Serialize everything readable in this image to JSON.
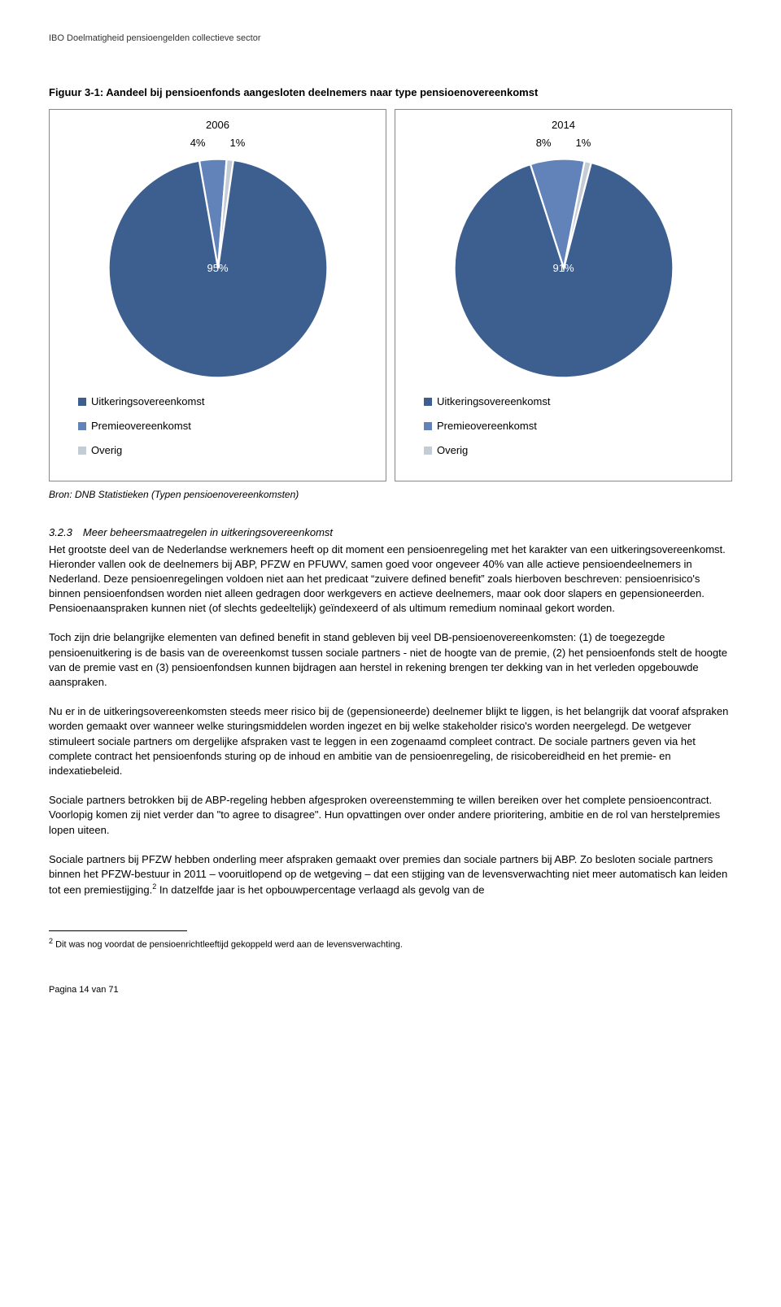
{
  "header": "IBO Doelmatigheid pensioengelden collectieve sector",
  "figure_title": "Figuur 3-1: Aandeel bij pensioenfonds aangesloten deelnemers naar type pensioenovereenkomst",
  "charts": {
    "left": {
      "year": "2006",
      "label_b": "4%",
      "label_c": "1%",
      "center_label": "95%",
      "slices": [
        {
          "value": 95,
          "color": "#3d5f8f"
        },
        {
          "value": 4,
          "color": "#6283b9"
        },
        {
          "value": 1,
          "color": "#c4cdd6"
        }
      ]
    },
    "right": {
      "year": "2014",
      "label_b": "8%",
      "label_c": "1%",
      "center_label": "91%",
      "slices": [
        {
          "value": 91,
          "color": "#3d5f8f"
        },
        {
          "value": 8,
          "color": "#6283b9"
        },
        {
          "value": 1,
          "color": "#c4cdd6"
        }
      ]
    },
    "legend": [
      {
        "label": "Uitkeringsovereenkomst",
        "color": "#3d5f8f"
      },
      {
        "label": "Premieovereenkomst",
        "color": "#6283b9"
      },
      {
        "label": "Overig",
        "color": "#c4cdd6"
      }
    ]
  },
  "source": "Bron: DNB Statistieken (Typen pensioenovereenkomsten)",
  "section_heading": "3.2.3 Meer beheersmaatregelen in uitkeringsovereenkomst",
  "para1": "Het grootste deel van de Nederlandse werknemers heeft op dit moment een pensioenregeling met het karakter van een uitkeringsovereenkomst. Hieronder vallen ook de deelnemers bij ABP, PFZW en PFUWV, samen goed voor ongeveer 40% van alle actieve pensioendeelnemers in Nederland. Deze pensioenregelingen voldoen niet aan het predicaat “zuivere defined benefit” zoals hierboven beschreven: pensioenrisico's binnen pensioenfondsen worden niet alleen gedragen door werkgevers en actieve deelnemers, maar ook door slapers en gepensioneerden. Pensioenaanspraken kunnen niet (of slechts gedeeltelijk) geïndexeerd of als ultimum remedium nominaal gekort worden.",
  "para2": "Toch zijn drie belangrijke elementen van defined benefit in stand gebleven bij veel DB-pensioenovereenkomsten: (1) de toegezegde pensioenuitkering is de basis van de overeenkomst tussen sociale partners - niet de hoogte van de premie, (2) het pensioenfonds stelt de hoogte van de premie vast en (3) pensioenfondsen kunnen bijdragen aan herstel in rekening brengen ter dekking van in het verleden opgebouwde aanspraken.",
  "para3": "Nu er in de uitkeringsovereenkomsten steeds meer risico bij de (gepensioneerde) deelnemer blijkt te liggen, is het belangrijk dat vooraf afspraken worden gemaakt over wanneer welke sturingsmiddelen worden ingezet en bij welke stakeholder risico's worden neergelegd. De wetgever stimuleert sociale partners om dergelijke afspraken vast te leggen in een zogenaamd compleet contract. De sociale partners geven via het complete contract het pensioenfonds sturing op de inhoud en ambitie van de pensioenregeling, de risicobereidheid en het premie- en indexatiebeleid.",
  "para4": "Sociale partners betrokken bij de ABP-regeling hebben afgesproken overeenstemming te willen bereiken over het complete pensioencontract. Voorlopig komen zij niet verder dan \"to agree to disagree\". Hun opvattingen over onder andere prioritering, ambitie en de rol van herstelpremies lopen uiteen.",
  "para5_a": "Sociale partners bij PFZW hebben onderling meer afspraken gemaakt over premies dan sociale partners bij ABP. Zo besloten sociale partners binnen het PFZW-bestuur in 2011 – vooruitlopend op de wetgeving – dat een stijging van de levensverwachting niet meer automatisch kan leiden tot een premiestijging.",
  "para5_b": " In datzelfde jaar is het opbouwpercentage verlaagd als gevolg van de",
  "footnote_marker": "2",
  "footnote": " Dit was nog voordat de pensioenrichtleeftijd gekoppeld werd aan de levensverwachting.",
  "page_num": "Pagina 14 van 71"
}
